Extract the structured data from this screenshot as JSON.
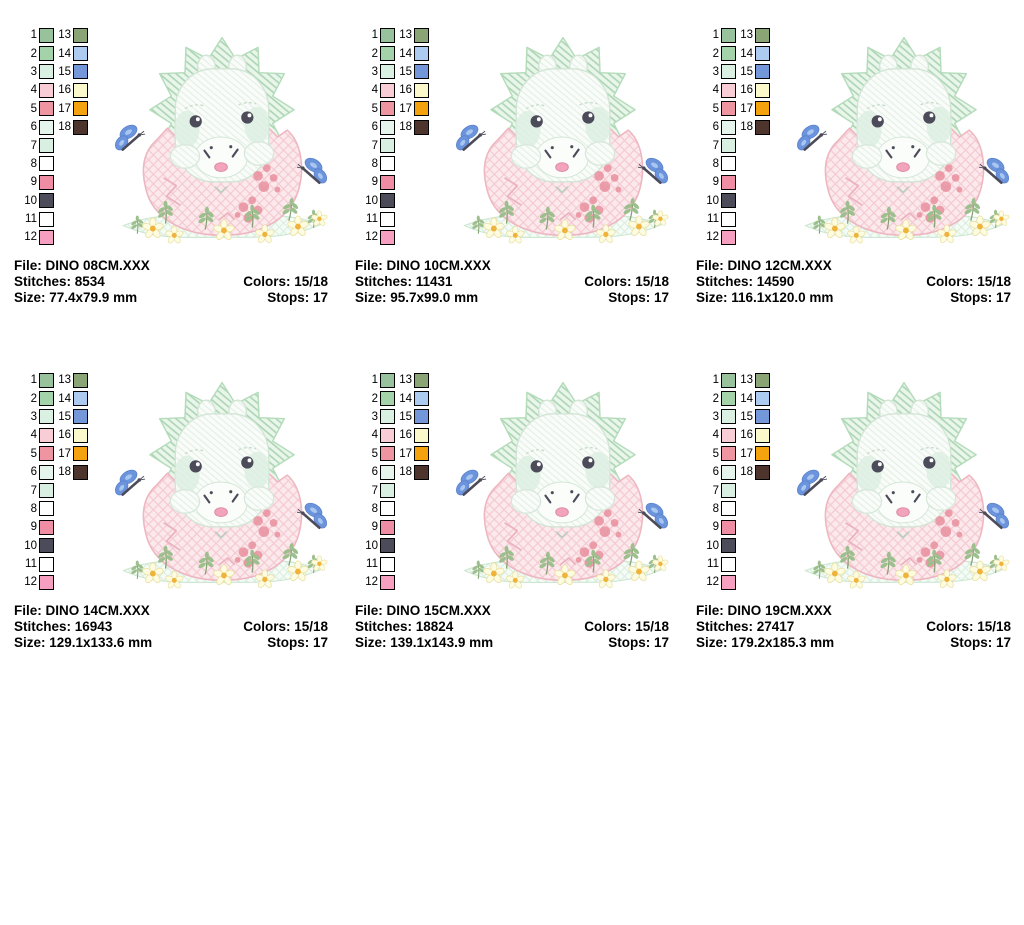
{
  "sheet": {
    "background": "#ffffff",
    "text_color": "#000000"
  },
  "palette": {
    "left": [
      {
        "n": "1",
        "c": "#98c29c"
      },
      {
        "n": "2",
        "c": "#a4d3aa"
      },
      {
        "n": "3",
        "c": "#d9f0e2"
      },
      {
        "n": "4",
        "c": "#f8cdd5"
      },
      {
        "n": "5",
        "c": "#ef94a1"
      },
      {
        "n": "6",
        "c": "#e6f5ec"
      },
      {
        "n": "7",
        "c": "#d9efe2"
      },
      {
        "n": "8",
        "c": "#ffffff"
      },
      {
        "n": "9",
        "c": "#ee8da3"
      },
      {
        "n": "10",
        "c": "#4c4b5a"
      },
      {
        "n": "11",
        "c": "#ffffff"
      },
      {
        "n": "12",
        "c": "#f79fc0"
      }
    ],
    "right": [
      {
        "n": "13",
        "c": "#8ba475"
      },
      {
        "n": "14",
        "c": "#adcbf1"
      },
      {
        "n": "15",
        "c": "#7397d9"
      },
      {
        "n": "16",
        "c": "#fbf8cc"
      },
      {
        "n": "17",
        "c": "#f4a30f"
      },
      {
        "n": "18",
        "c": "#4d342c"
      }
    ]
  },
  "panels": [
    {
      "file": "File: DINO 08CM.XXX",
      "stitches": "Stitches: 8534",
      "size": "Size: 77.4x79.9 mm",
      "colors": "Colors: 15/18",
      "stops": "Stops: 17"
    },
    {
      "file": "File: DINO 10CM.XXX",
      "stitches": "Stitches: 11431",
      "size": "Size: 95.7x99.0 mm",
      "colors": "Colors: 15/18",
      "stops": "Stops: 17"
    },
    {
      "file": "File: DINO 12CM.XXX",
      "stitches": "Stitches: 14590",
      "size": "Size: 116.1x120.0 mm",
      "colors": "Colors: 15/18",
      "stops": "Stops: 17"
    },
    {
      "file": "File: DINO 14CM.XXX",
      "stitches": "Stitches: 16943",
      "size": "Size: 129.1x133.6 mm",
      "colors": "Colors: 15/18",
      "stops": "Stops: 17"
    },
    {
      "file": "File: DINO 15CM.XXX",
      "stitches": "Stitches: 18824",
      "size": "Size: 139.1x143.9 mm",
      "colors": "Colors: 15/18",
      "stops": "Stops: 17"
    },
    {
      "file": "File: DINO 19CM.XXX",
      "stitches": "Stitches: 27417",
      "size": "Size: 179.2x185.3 mm",
      "colors": "Colors: 15/18",
      "stops": "Stops: 17"
    }
  ],
  "artwork": {
    "frill_fill": "#eaf6ec",
    "frill_hatch": "#a9d4b0",
    "frill_outline": "#b4dcba",
    "face_fill": "#f9fcf9",
    "face_hatch": "#e3efe5",
    "face_outline": "#d2e5d5",
    "cheek": "#d9eedf",
    "snout": "#fcfefc",
    "brow": "#c9dccb",
    "ink": "#4c4b5a",
    "egg_fill": "#fbe9ec",
    "egg_hatch": "#f4c9d2",
    "egg_outline": "#eeb6c1",
    "crack": "#ecb3be",
    "spot": "#e9909e",
    "chin": "#b9cfbd",
    "mouth": "#f2a4bd",
    "mouth_outline": "#de8aa6",
    "paw_outline": "#d8e7db",
    "wing": "#6b94dd",
    "wing_dark": "#5b82cc",
    "wing_light": "#a9c6f0",
    "leaf": "#9cbf8d",
    "stem": "#85a271",
    "petal": "#fdfbe0",
    "petal_outline": "#e9df9e",
    "flower_center": "#efb23a",
    "ground_fill": "#f5fbf6",
    "ground_hatch": "#d9eddc",
    "ground_outline": "#cde7d2"
  }
}
